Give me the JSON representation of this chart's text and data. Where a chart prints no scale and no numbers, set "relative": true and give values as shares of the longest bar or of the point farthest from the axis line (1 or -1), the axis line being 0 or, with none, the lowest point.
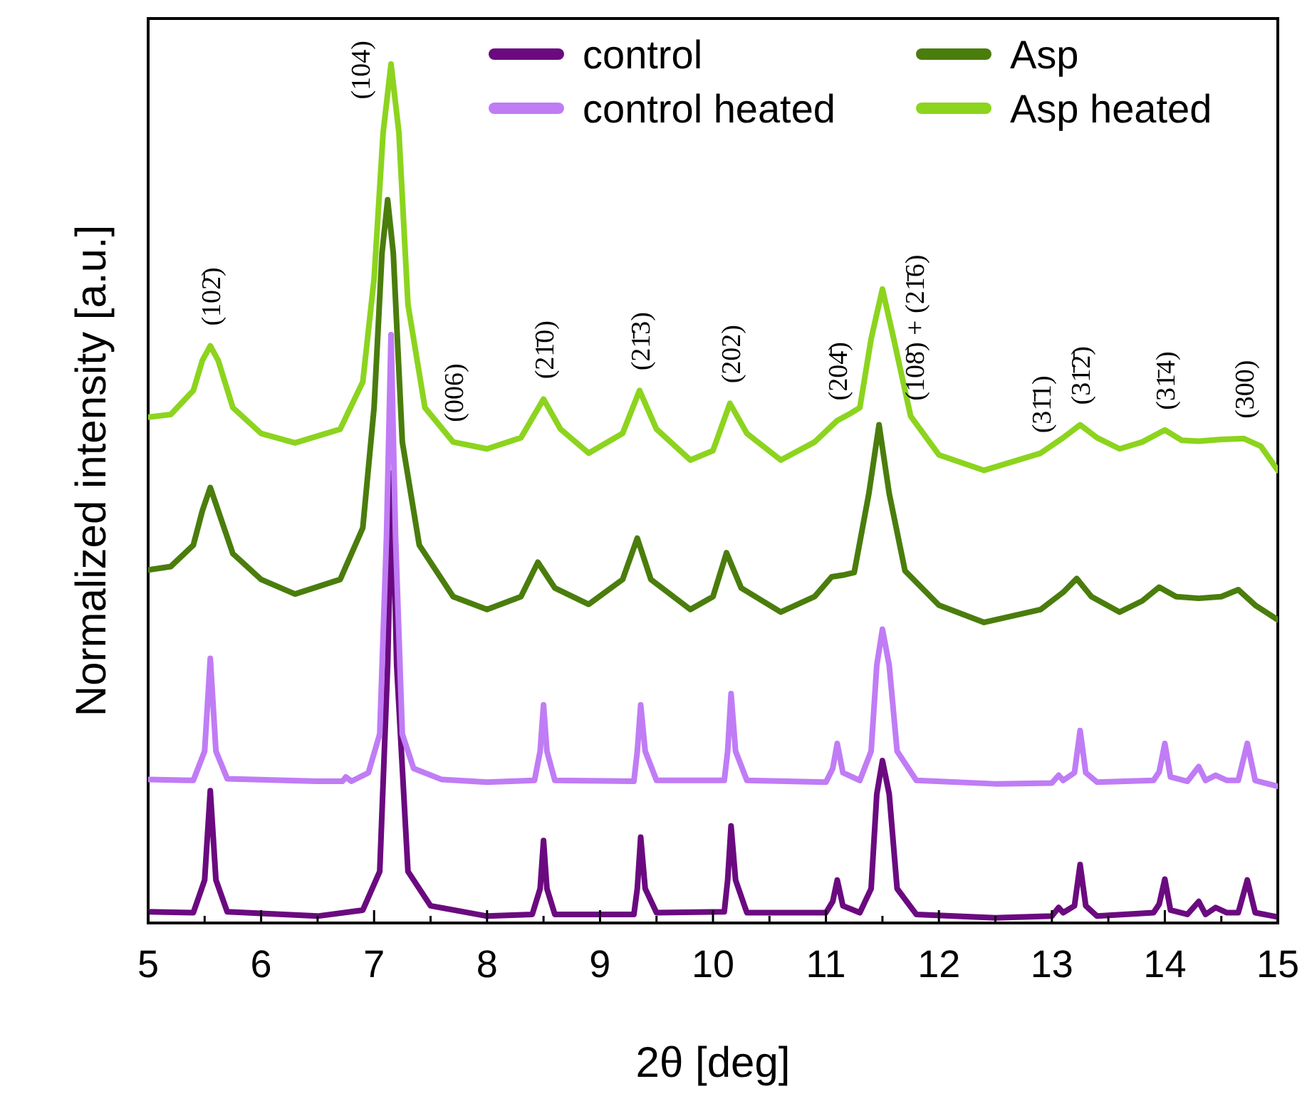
{
  "chart_data": {
    "type": "line",
    "relative": true,
    "xlabel": "2θ [deg]",
    "ylabel": "Normalized intensity [a.u.]",
    "xlim": [
      5,
      15
    ],
    "xticks": [
      5,
      {
        "value": 5.5,
        "label": null
      },
      6,
      {
        "value": 6.5,
        "label": null
      },
      7,
      {
        "value": 7.5,
        "label": null
      },
      8,
      {
        "value": 8.5,
        "label": null
      },
      9,
      {
        "value": 9.5,
        "label": null
      },
      10,
      {
        "value": 10.5,
        "label": null
      },
      11,
      {
        "value": 11.5,
        "label": null
      },
      12,
      {
        "value": 12.5,
        "label": null
      },
      13,
      {
        "value": 13.5,
        "label": null
      },
      14,
      {
        "value": 14.5,
        "label": null
      },
      15
    ],
    "legend": "top right",
    "marker": "none",
    "line_style": "solid",
    "series": [
      {
        "name": "control",
        "color": "#6b0a80",
        "x": [
          5.0,
          5.4,
          5.5,
          5.55,
          5.6,
          5.7,
          6.5,
          6.9,
          7.05,
          7.12,
          7.16,
          7.2,
          7.3,
          7.5,
          8.0,
          8.4,
          8.47,
          8.5,
          8.53,
          8.6,
          9.3,
          9.33,
          9.36,
          9.4,
          9.5,
          10.1,
          10.13,
          10.16,
          10.2,
          10.3,
          11.0,
          11.06,
          11.1,
          11.15,
          11.3,
          11.4,
          11.45,
          11.5,
          11.56,
          11.63,
          11.8,
          12.5,
          13.0,
          13.06,
          13.1,
          13.2,
          13.25,
          13.3,
          13.4,
          13.9,
          13.95,
          14.0,
          14.05,
          14.2,
          14.3,
          14.36,
          14.45,
          14.55,
          14.65,
          14.73,
          14.8,
          15.0
        ],
        "values": [
          0.013,
          0.012,
          0.05,
          0.154,
          0.05,
          0.013,
          0.008,
          0.015,
          0.06,
          0.3,
          0.524,
          0.3,
          0.06,
          0.02,
          0.008,
          0.01,
          0.04,
          0.096,
          0.04,
          0.01,
          0.01,
          0.04,
          0.1,
          0.04,
          0.012,
          0.013,
          0.05,
          0.113,
          0.05,
          0.012,
          0.012,
          0.025,
          0.05,
          0.02,
          0.012,
          0.04,
          0.15,
          0.189,
          0.15,
          0.04,
          0.01,
          0.006,
          0.008,
          0.018,
          0.012,
          0.02,
          0.068,
          0.02,
          0.008,
          0.012,
          0.022,
          0.051,
          0.015,
          0.01,
          0.025,
          0.01,
          0.018,
          0.012,
          0.012,
          0.05,
          0.012,
          0.007
        ]
      },
      {
        "name": "control heated",
        "color": "#c07cf5",
        "x": [
          5.0,
          5.4,
          5.5,
          5.55,
          5.6,
          5.7,
          6.5,
          6.72,
          6.75,
          6.8,
          6.95,
          7.05,
          7.11,
          7.15,
          7.19,
          7.25,
          7.35,
          7.6,
          8.0,
          8.42,
          8.47,
          8.5,
          8.53,
          8.6,
          9.3,
          9.33,
          9.36,
          9.4,
          9.5,
          10.1,
          10.13,
          10.16,
          10.2,
          10.3,
          11.0,
          11.06,
          11.1,
          11.15,
          11.3,
          11.4,
          11.45,
          11.5,
          11.56,
          11.63,
          11.8,
          12.5,
          13.0,
          13.06,
          13.1,
          13.2,
          13.25,
          13.3,
          13.4,
          13.9,
          13.95,
          14.0,
          14.05,
          14.2,
          14.3,
          14.36,
          14.45,
          14.55,
          14.65,
          14.73,
          14.8,
          15.0
        ],
        "values": [
          0.167,
          0.166,
          0.2,
          0.308,
          0.2,
          0.168,
          0.165,
          0.165,
          0.17,
          0.165,
          0.175,
          0.22,
          0.45,
          0.685,
          0.45,
          0.22,
          0.18,
          0.167,
          0.164,
          0.166,
          0.2,
          0.254,
          0.2,
          0.166,
          0.165,
          0.2,
          0.254,
          0.2,
          0.166,
          0.166,
          0.2,
          0.267,
          0.2,
          0.166,
          0.164,
          0.18,
          0.209,
          0.175,
          0.166,
          0.2,
          0.3,
          0.342,
          0.3,
          0.2,
          0.166,
          0.162,
          0.163,
          0.172,
          0.166,
          0.175,
          0.224,
          0.175,
          0.164,
          0.166,
          0.176,
          0.209,
          0.17,
          0.165,
          0.182,
          0.166,
          0.172,
          0.166,
          0.166,
          0.209,
          0.166,
          0.159
        ]
      },
      {
        "name": "Asp",
        "color": "#4a7d0c",
        "x": [
          5.0,
          5.2,
          5.4,
          5.48,
          5.55,
          5.62,
          5.75,
          6.0,
          6.3,
          6.7,
          6.9,
          7.0,
          7.07,
          7.12,
          7.17,
          7.25,
          7.4,
          7.7,
          8.0,
          8.3,
          8.45,
          8.6,
          8.9,
          9.2,
          9.33,
          9.45,
          9.8,
          10.0,
          10.12,
          10.25,
          10.6,
          10.9,
          11.05,
          11.15,
          11.25,
          11.38,
          11.47,
          11.56,
          11.7,
          12.0,
          12.4,
          12.9,
          13.1,
          13.22,
          13.35,
          13.6,
          13.8,
          13.95,
          14.1,
          14.3,
          14.5,
          14.65,
          14.8,
          15.0
        ],
        "values": [
          0.411,
          0.415,
          0.44,
          0.48,
          0.507,
          0.48,
          0.43,
          0.4,
          0.383,
          0.4,
          0.46,
          0.6,
          0.78,
          0.842,
          0.78,
          0.56,
          0.44,
          0.38,
          0.365,
          0.38,
          0.42,
          0.39,
          0.371,
          0.4,
          0.448,
          0.4,
          0.365,
          0.38,
          0.431,
          0.39,
          0.362,
          0.38,
          0.403,
          0.405,
          0.408,
          0.5,
          0.58,
          0.5,
          0.41,
          0.37,
          0.35,
          0.365,
          0.385,
          0.401,
          0.38,
          0.362,
          0.375,
          0.391,
          0.38,
          0.378,
          0.38,
          0.388,
          0.37,
          0.353
        ]
      },
      {
        "name": "Asp heated",
        "color": "#8cd41e",
        "x": [
          5.0,
          5.2,
          5.4,
          5.48,
          5.55,
          5.62,
          5.75,
          6.0,
          6.3,
          6.7,
          6.9,
          7.0,
          7.08,
          7.15,
          7.22,
          7.3,
          7.45,
          7.7,
          8.0,
          8.3,
          8.5,
          8.65,
          8.9,
          9.2,
          9.35,
          9.5,
          9.8,
          10.0,
          10.15,
          10.3,
          10.6,
          10.9,
          11.1,
          11.2,
          11.3,
          11.4,
          11.5,
          11.6,
          11.75,
          12.0,
          12.4,
          12.9,
          13.1,
          13.25,
          13.4,
          13.6,
          13.8,
          14.0,
          14.15,
          14.3,
          14.5,
          14.7,
          14.85,
          15.0
        ],
        "values": [
          0.589,
          0.592,
          0.62,
          0.655,
          0.672,
          0.655,
          0.6,
          0.57,
          0.559,
          0.575,
          0.63,
          0.75,
          0.92,
          1.0,
          0.92,
          0.72,
          0.6,
          0.56,
          0.552,
          0.565,
          0.61,
          0.575,
          0.547,
          0.57,
          0.62,
          0.575,
          0.539,
          0.55,
          0.605,
          0.57,
          0.539,
          0.56,
          0.585,
          0.592,
          0.6,
          0.68,
          0.738,
          0.68,
          0.59,
          0.545,
          0.527,
          0.547,
          0.565,
          0.58,
          0.565,
          0.552,
          0.56,
          0.574,
          0.562,
          0.561,
          0.563,
          0.564,
          0.555,
          0.527
        ]
      }
    ],
    "annotations": [
      {
        "text": "(102̄)",
        "x": 5.55,
        "y": 0.672
      },
      {
        "text": "(104)",
        "x": 7.15,
        "y": 1.0
      },
      {
        "text": "(006)",
        "x": 7.7,
        "y": 0.56
      },
      {
        "text": "(21̄0)",
        "x": 8.5,
        "y": 0.61
      },
      {
        "text": "(21̄3)",
        "x": 9.35,
        "y": 0.62
      },
      {
        "text": "(202)",
        "x": 10.15,
        "y": 0.605
      },
      {
        "text": "(204̄)",
        "x": 11.1,
        "y": 0.585
      },
      {
        "text": "(108̄) + (21̄6)",
        "x": 11.5,
        "y": 0.738
      },
      {
        "text": "(31̄1)",
        "x": 12.9,
        "y": 0.547
      },
      {
        "text": "(31̄2̄)",
        "x": 13.25,
        "y": 0.58
      },
      {
        "text": "(31̄4)",
        "x": 14.0,
        "y": 0.574
      },
      {
        "text": "(300)",
        "x": 14.7,
        "y": 0.564
      }
    ]
  }
}
